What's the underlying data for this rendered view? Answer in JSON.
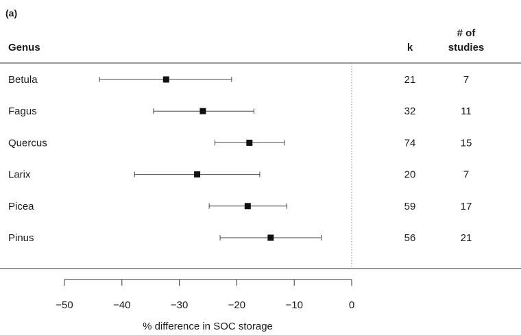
{
  "chart_data": {
    "type": "forest",
    "panel_label": "(a)",
    "columns": {
      "label": "Genus",
      "k": "k",
      "studies_line1": "# of",
      "studies_line2": "studies"
    },
    "xlabel": "% difference in SOC storage",
    "xlim": [
      -50,
      0
    ],
    "xticks": [
      -50,
      -40,
      -30,
      -20,
      -10,
      0
    ],
    "xtick_labels": [
      "−50",
      "−40",
      "−30",
      "−20",
      "−10",
      "0"
    ],
    "reference_line": 0,
    "rows": [
      {
        "label": "Betula",
        "estimate": -32.3,
        "lower": -43.9,
        "upper": -20.9,
        "k": "21",
        "studies": "7"
      },
      {
        "label": "Fagus",
        "estimate": -25.9,
        "lower": -34.5,
        "upper": -17.0,
        "k": "32",
        "studies": "11"
      },
      {
        "label": "Quercus",
        "estimate": -17.8,
        "lower": -23.8,
        "upper": -11.7,
        "k": "74",
        "studies": "15"
      },
      {
        "label": "Larix",
        "estimate": -26.9,
        "lower": -37.8,
        "upper": -16.0,
        "k": "20",
        "studies": "7"
      },
      {
        "label": "Picea",
        "estimate": -18.1,
        "lower": -24.8,
        "upper": -11.3,
        "k": "59",
        "studies": "17"
      },
      {
        "label": "Pinus",
        "estimate": -14.1,
        "lower": -22.9,
        "upper": -5.3,
        "k": "56",
        "studies": "21"
      }
    ]
  }
}
